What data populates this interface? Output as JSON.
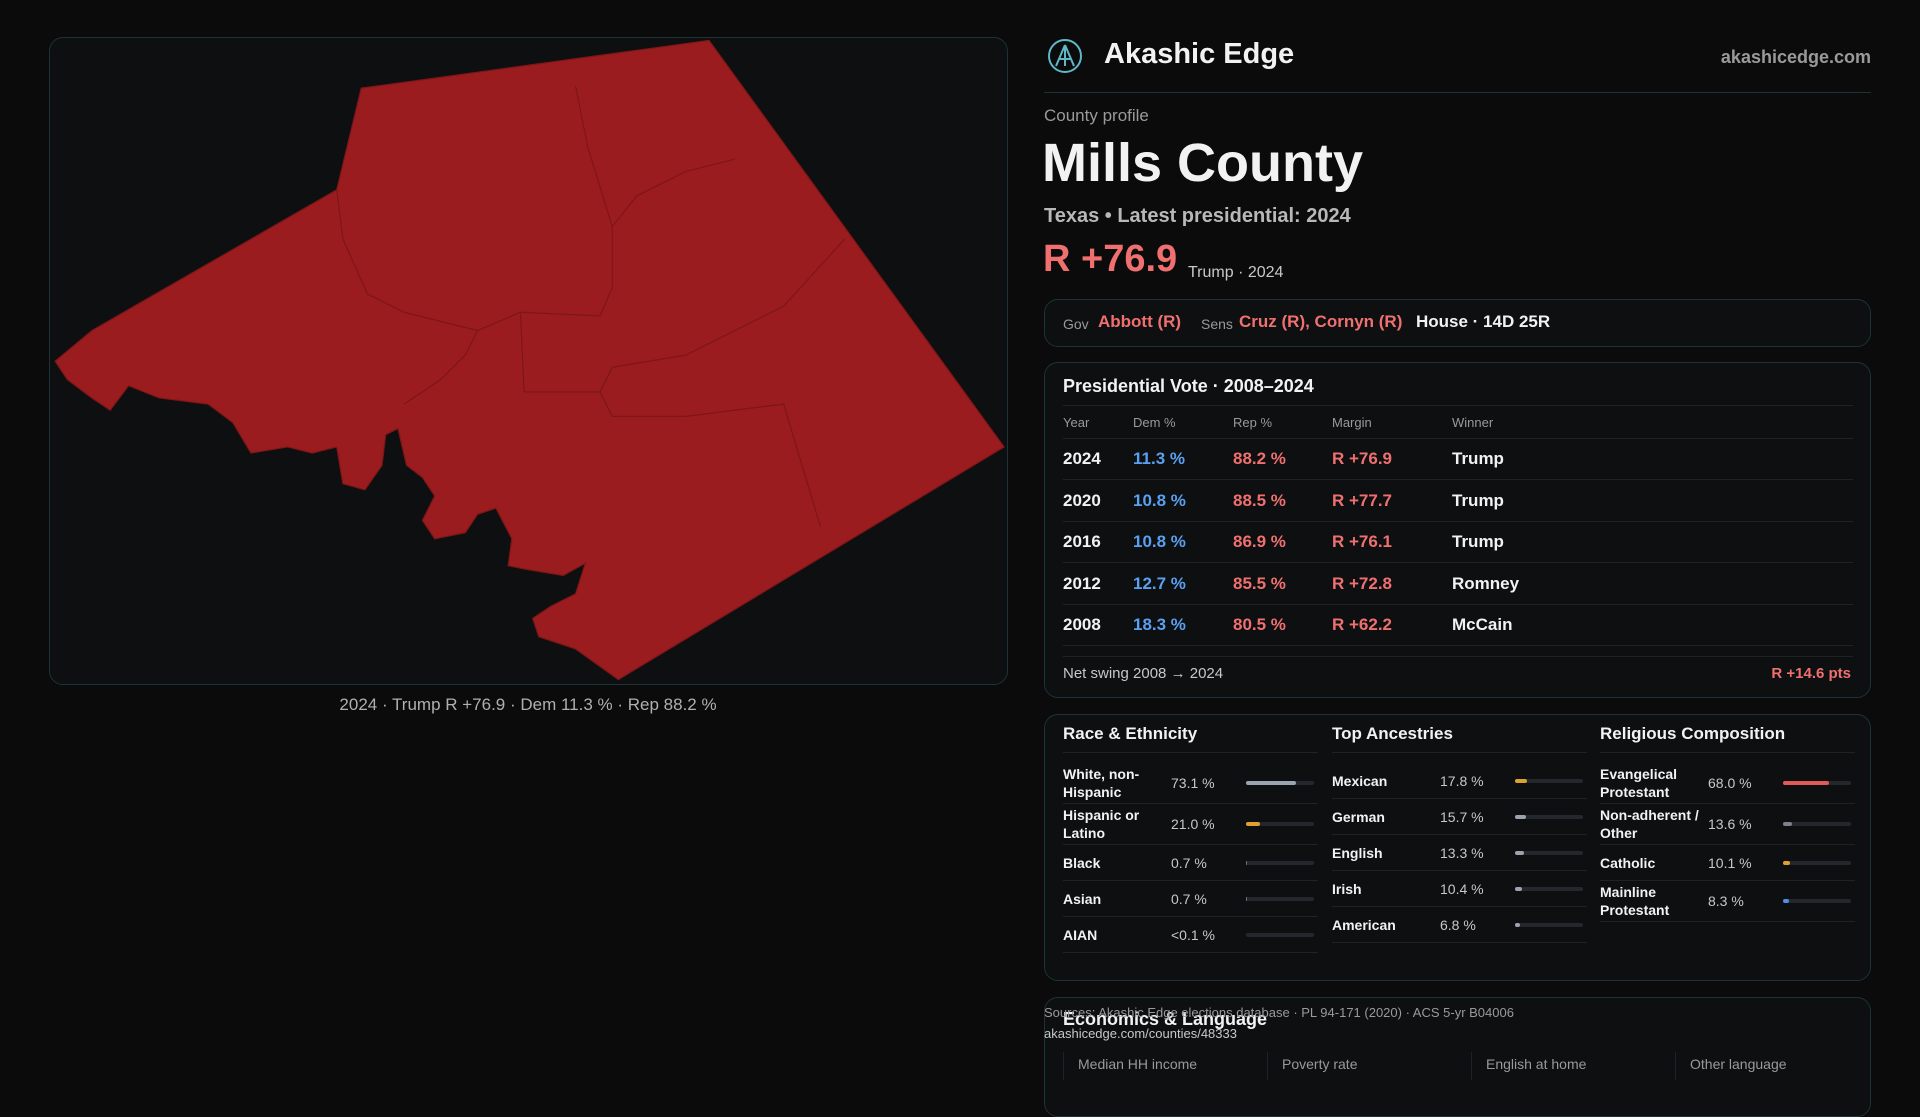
{
  "header": {
    "brand": "Akashic Edge",
    "url": "akashicedge.com"
  },
  "map": {
    "caption": "2024 · Trump R +76.9 · Dem 11.3 % · Rep 88.2 %"
  },
  "profile": {
    "kicker": "County profile",
    "title": "Mills County",
    "subtitle": "Texas • Latest presidential: 2024",
    "margin": "R +76.9",
    "margin_note": "Trump · 2024"
  },
  "officials": {
    "gov_label": "Gov",
    "gov": "Abbott (R)",
    "sens_label": "Sens",
    "sens": "Cruz (R), Cornyn (R)",
    "house": "House · 14D 25R"
  },
  "presidential": {
    "title": "Presidential Vote · 2008–2024",
    "columns": [
      "Year",
      "Dem %",
      "Rep %",
      "Margin",
      "Winner"
    ],
    "rows": [
      [
        "2024",
        "11.3 %",
        "88.2 %",
        "R +76.9",
        "Trump"
      ],
      [
        "2020",
        "10.8 %",
        "88.5 %",
        "R +77.7",
        "Trump"
      ],
      [
        "2016",
        "10.8 %",
        "86.9 %",
        "R +76.1",
        "Trump"
      ],
      [
        "2012",
        "12.7 %",
        "85.5 %",
        "R +72.8",
        "Romney"
      ],
      [
        "2008",
        "18.3 %",
        "80.5 %",
        "R +62.2",
        "McCain"
      ]
    ],
    "swing_label": "Net swing 2008 → 2024",
    "swing": "R +14.6 pts"
  },
  "demographics": [
    {
      "title": "Race & Ethnicity",
      "rows": [
        {
          "name": "White, non-Hispanic",
          "value": 73.1,
          "label": "73.1 %",
          "color": "#9aa3b0"
        },
        {
          "name": "Hispanic or Latino",
          "value": 21.0,
          "label": "21.0 %",
          "color": "#e0a030"
        },
        {
          "name": "Black",
          "value": 0.7,
          "label": "0.7 %",
          "color": "#6b7280"
        },
        {
          "name": "Asian",
          "value": 0.7,
          "label": "0.7 %",
          "color": "#6b7280"
        },
        {
          "name": "AIAN",
          "value": 0.05,
          "label": "<0.1 %",
          "color": "#6b7280"
        }
      ]
    },
    {
      "title": "Top Ancestries",
      "rows": [
        {
          "name": "Mexican",
          "value": 17.8,
          "label": "17.8 %",
          "color": "#e0a030"
        },
        {
          "name": "German",
          "value": 15.7,
          "label": "15.7 %",
          "color": "#9aa3b0"
        },
        {
          "name": "English",
          "value": 13.3,
          "label": "13.3 %",
          "color": "#9aa3b0"
        },
        {
          "name": "Irish",
          "value": 10.4,
          "label": "10.4 %",
          "color": "#9aa3b0"
        },
        {
          "name": "American",
          "value": 6.8,
          "label": "6.8 %",
          "color": "#9aa3b0"
        }
      ]
    },
    {
      "title": "Religious Composition",
      "rows": [
        {
          "name": "Evangelical Protestant",
          "value": 68.0,
          "label": "68.0 %",
          "color": "#e05a5a"
        },
        {
          "name": "Non-adherent / Other",
          "value": 13.6,
          "label": "13.6 %",
          "color": "#7b8089"
        },
        {
          "name": "Catholic",
          "value": 10.1,
          "label": "10.1 %",
          "color": "#e0a030"
        },
        {
          "name": "Mainline Protestant",
          "value": 8.3,
          "label": "8.3 %",
          "color": "#4f8fe0"
        }
      ]
    }
  ],
  "economics": {
    "title": "Economics & Language",
    "columns": [
      "Median HH income",
      "Poverty rate",
      "English at home",
      "Other language"
    ]
  },
  "sources": {
    "text": "Sources: Akashic Edge elections database · PL 94-171 (2020) · ACS 5-yr B04006",
    "url": "akashicedge.com/counties/48333"
  }
}
